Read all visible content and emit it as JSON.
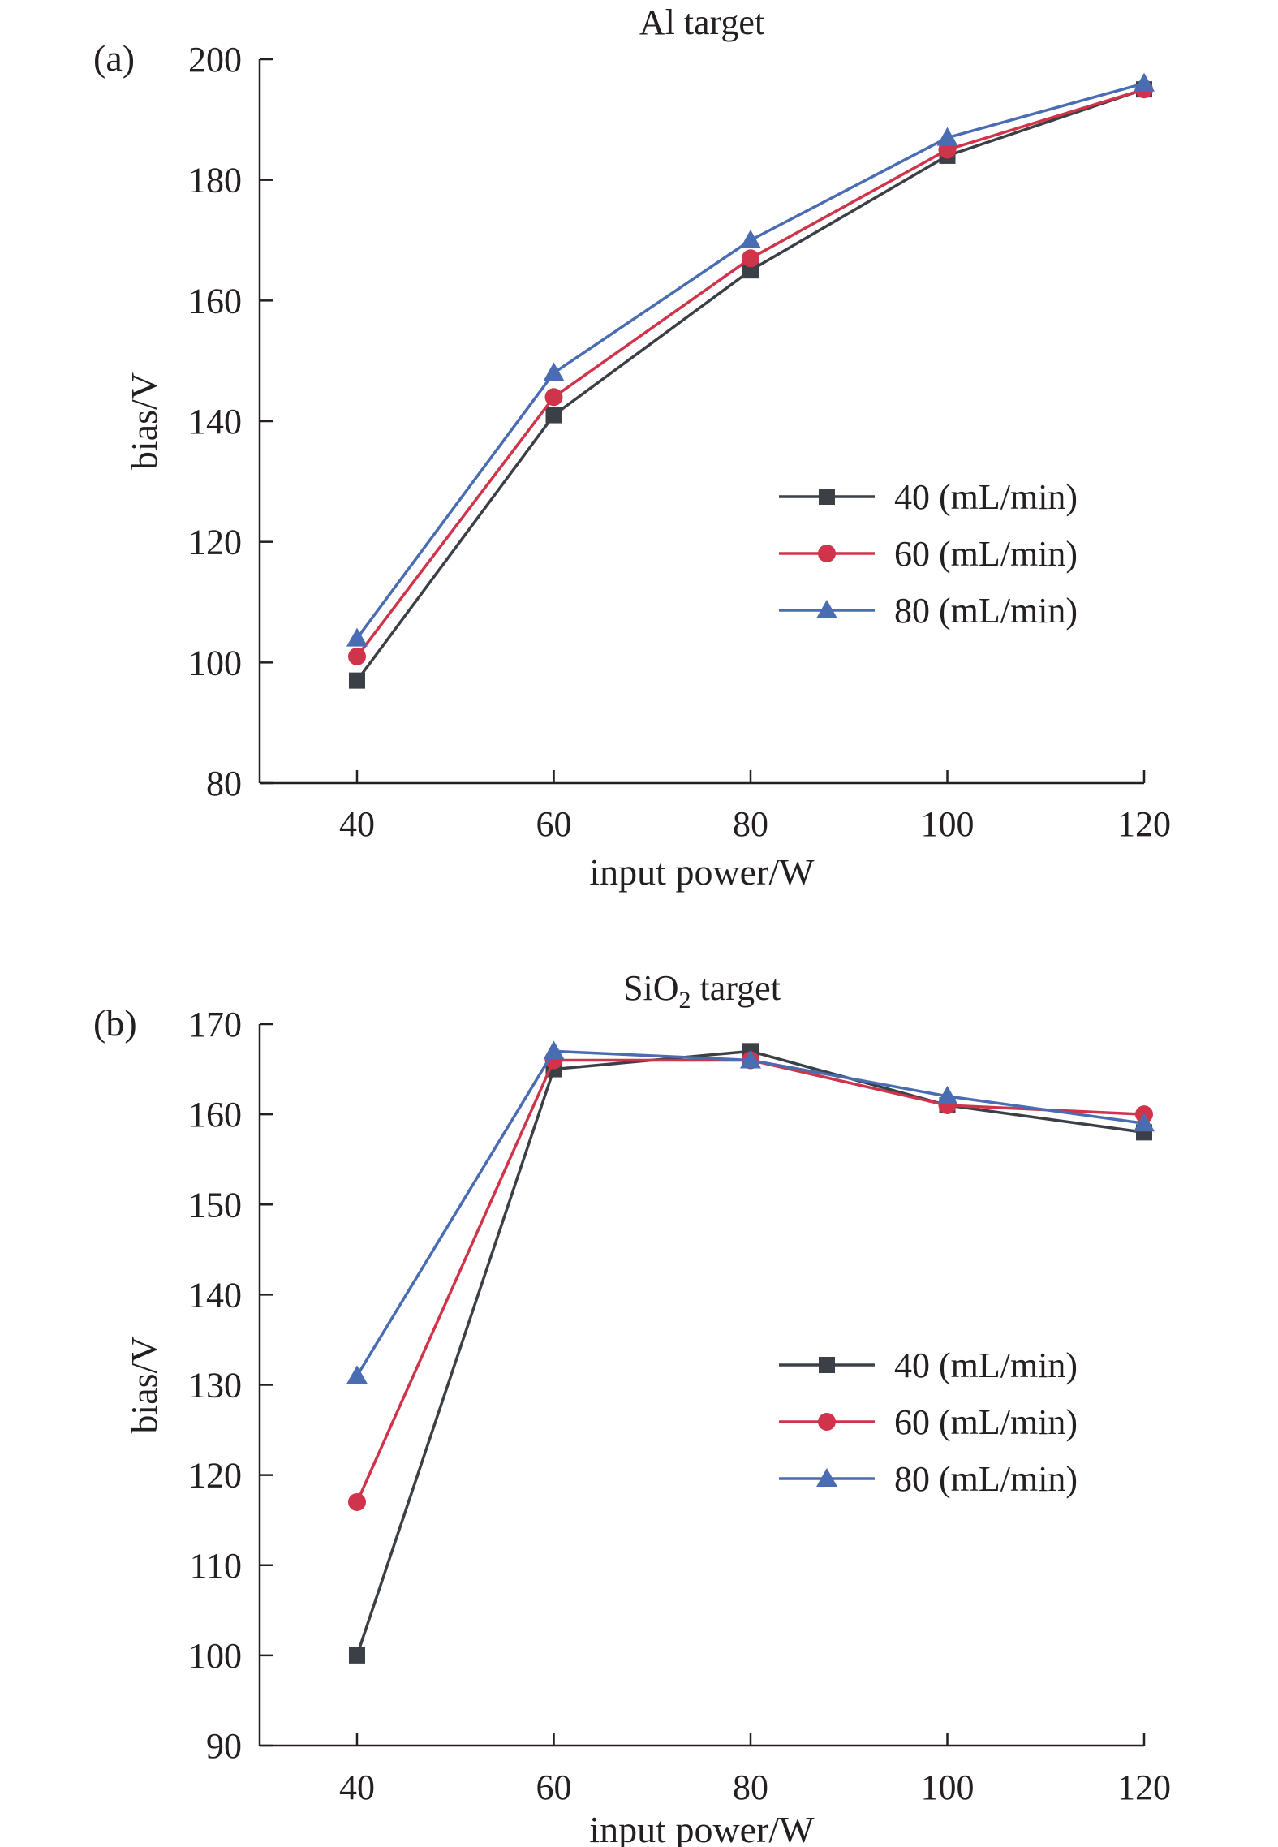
{
  "chart_data": [
    {
      "type": "line",
      "panel_label": "(a)",
      "title": "Al target",
      "xlabel": "input power/W",
      "ylabel": "bias/V",
      "x": [
        40,
        60,
        80,
        100,
        120
      ],
      "x_ticks": [
        "40",
        "60",
        "80",
        "100",
        "120"
      ],
      "ylim": [
        80,
        200
      ],
      "y_ticks": [
        "80",
        "100",
        "120",
        "140",
        "160",
        "180",
        "200"
      ],
      "grid": false,
      "legend_position": "center-right",
      "series": [
        {
          "name": "40 (mL/min)",
          "marker": "square",
          "color": "#3a4046",
          "values": [
            97,
            141,
            165,
            184,
            195
          ]
        },
        {
          "name": "60 (mL/min)",
          "marker": "circle",
          "color": "#d0344a",
          "values": [
            101,
            144,
            167,
            185,
            195
          ]
        },
        {
          "name": "80 (mL/min)",
          "marker": "triangle",
          "color": "#4a6cb3",
          "values": [
            104,
            148,
            170,
            187,
            196
          ]
        }
      ]
    },
    {
      "type": "line",
      "panel_label": "(b)",
      "title": "SiO2 target",
      "title_parts": [
        "SiO",
        "2",
        " target"
      ],
      "xlabel": "input power/W",
      "ylabel": "bias/V",
      "x": [
        40,
        60,
        80,
        100,
        120
      ],
      "x_ticks": [
        "40",
        "60",
        "80",
        "100",
        "120"
      ],
      "ylim": [
        90,
        170
      ],
      "y_ticks": [
        "90",
        "100",
        "110",
        "120",
        "130",
        "140",
        "150",
        "160",
        "170"
      ],
      "grid": false,
      "legend_position": "center-right",
      "series": [
        {
          "name": "40 (mL/min)",
          "marker": "square",
          "color": "#3a4046",
          "values": [
            100,
            165,
            167,
            161,
            158
          ]
        },
        {
          "name": "60 (mL/min)",
          "marker": "circle",
          "color": "#d0344a",
          "values": [
            117,
            166,
            166,
            161,
            160
          ]
        },
        {
          "name": "80 (mL/min)",
          "marker": "triangle",
          "color": "#4a6cb3",
          "values": [
            131,
            167,
            166,
            162,
            159
          ]
        }
      ]
    }
  ]
}
